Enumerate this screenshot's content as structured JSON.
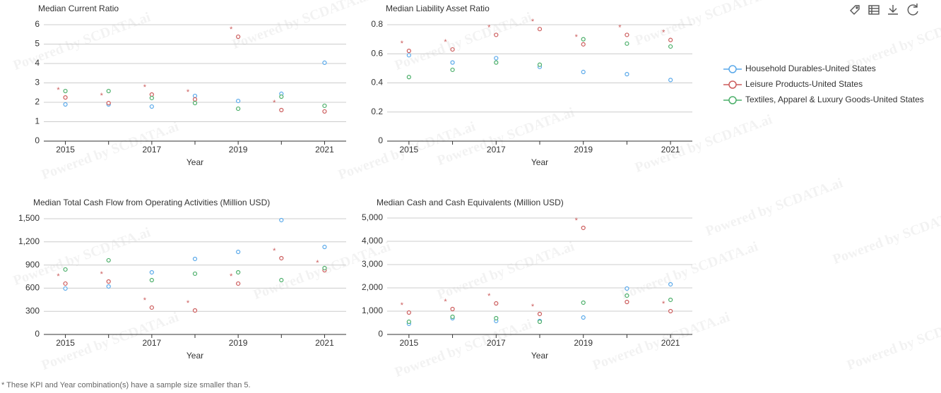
{
  "legend": [
    {
      "name": "Household Durables-United States",
      "color": "#5aa9ea"
    },
    {
      "name": "Leisure Products-United States",
      "color": "#cc5c5c"
    },
    {
      "name": "Textiles, Apparel & Luxury Goods-United States",
      "color": "#4caf6a"
    }
  ],
  "sample_marker": "*",
  "footnote": "* These KPI and Year combination(s) have a sample size smaller than 5.",
  "watermark": "Powered by SCDATA.ai",
  "chart_data": [
    {
      "type": "line",
      "title": "Median Current Ratio",
      "x_label": "Year",
      "categories": [
        "2015",
        null,
        "2017",
        null,
        "2019",
        null,
        "2021"
      ],
      "ylim": [
        0,
        6
      ],
      "yticks": [
        0,
        1,
        2,
        3,
        4,
        5,
        6
      ],
      "grid": true,
      "small_sample": [
        true,
        true,
        true,
        true,
        true,
        true,
        false
      ],
      "series": [
        {
          "values": [
            1.89,
            1.89,
            1.78,
            2.33,
            2.07,
            2.44,
            4.04
          ]
        },
        {
          "values": [
            2.25,
            1.96,
            2.4,
            2.15,
            5.38,
            1.6,
            1.53
          ]
        },
        {
          "values": [
            2.58,
            2.58,
            2.22,
            1.96,
            1.67,
            2.29,
            1.82
          ]
        }
      ]
    },
    {
      "type": "line",
      "title": "Median Liability Asset Ratio",
      "x_label": "Year",
      "categories": [
        "2015",
        null,
        "2017",
        null,
        "2019",
        null,
        "2021"
      ],
      "ylim": [
        0,
        0.8
      ],
      "yticks": [
        0,
        0.2,
        0.4,
        0.6,
        0.8
      ],
      "grid": true,
      "small_sample": [
        true,
        true,
        true,
        true,
        true,
        true,
        true
      ],
      "series": [
        {
          "values": [
            0.59,
            0.54,
            0.57,
            0.51,
            0.475,
            0.46,
            0.42
          ]
        },
        {
          "values": [
            0.62,
            0.63,
            0.73,
            0.77,
            0.665,
            0.73,
            0.695
          ]
        },
        {
          "values": [
            0.44,
            0.49,
            0.54,
            0.525,
            0.7,
            0.67,
            0.65
          ]
        }
      ]
    },
    {
      "type": "line",
      "title": "Median Total Cash Flow from Operating Activities (Million USD)",
      "x_label": "Year",
      "categories": [
        "2015",
        null,
        "2017",
        null,
        "2019",
        null,
        "2021"
      ],
      "ylim": [
        0,
        1500
      ],
      "yticks": [
        0,
        300,
        600,
        900,
        {
          "value": 1200,
          "label": "1,200"
        },
        {
          "value": 1500,
          "label": "1,500"
        }
      ],
      "grid": true,
      "small_sample": [
        true,
        true,
        true,
        true,
        true,
        true,
        true
      ],
      "series": [
        {
          "values": [
            595,
            622,
            805,
            979,
            1070,
            1482,
            1134
          ]
        },
        {
          "values": [
            659,
            686,
            348,
            311,
            659,
            988,
            832
          ]
        },
        {
          "values": [
            842,
            961,
            704,
            787,
            805,
            704,
            860
          ]
        }
      ]
    },
    {
      "type": "line",
      "title": "Median Cash and Cash Equivalents (Million USD)",
      "x_label": "Year",
      "categories": [
        "2015",
        null,
        "2017",
        null,
        "2019",
        null,
        "2021"
      ],
      "ylim": [
        0,
        5000
      ],
      "yticks": [
        0,
        {
          "value": 1000,
          "label": "1,000"
        },
        {
          "value": 2000,
          "label": "2,000"
        },
        {
          "value": 3000,
          "label": "3,000"
        },
        {
          "value": 4000,
          "label": "4,000"
        },
        {
          "value": 5000,
          "label": "5,000"
        }
      ],
      "grid": true,
      "small_sample": [
        true,
        true,
        true,
        true,
        true,
        false,
        true
      ],
      "series": [
        {
          "values": [
            455,
            697,
            576,
            576,
            727,
            1970,
            2152
          ]
        },
        {
          "values": [
            939,
            1091,
            1333,
            879,
            4576,
            1394,
            1000
          ]
        },
        {
          "values": [
            545,
            758,
            697,
            545,
            1364,
            1667,
            1485
          ]
        }
      ]
    }
  ]
}
